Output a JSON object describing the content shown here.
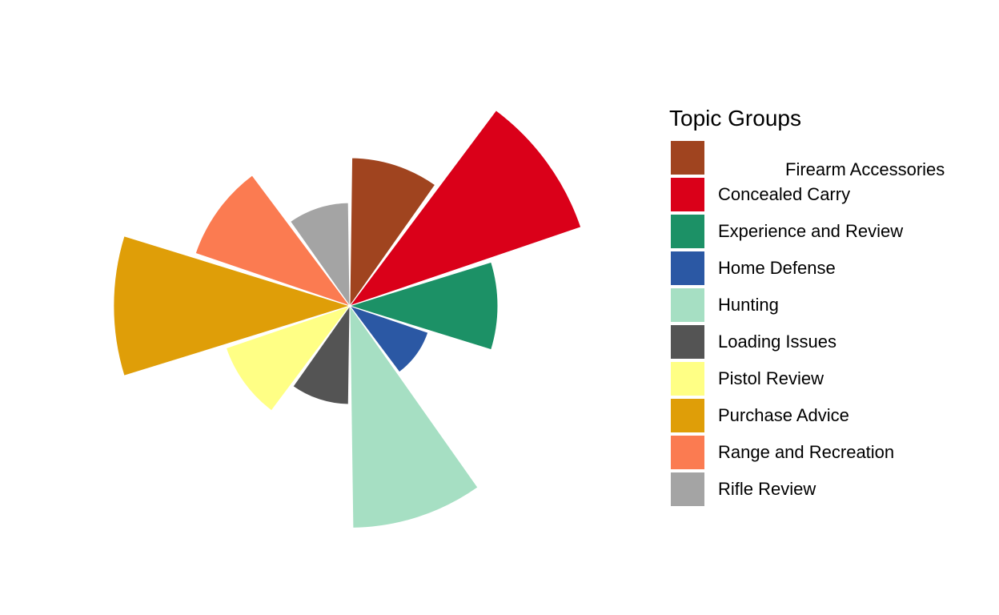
{
  "chart_data": {
    "type": "polar-bar",
    "title": "",
    "legend": {
      "title": "Topic Groups",
      "position": "right"
    },
    "grid": false,
    "series": [
      {
        "name": "Firearm Accessories",
        "value": 188,
        "color": "#A0441F"
      },
      {
        "name": "Concealed Carry",
        "value": 310,
        "color": "#DA0019"
      },
      {
        "name": "Experience and Review",
        "value": 188,
        "color": "#1C9166"
      },
      {
        "name": "Home Defense",
        "value": 105,
        "color": "#2B58A4"
      },
      {
        "name": "Hunting",
        "value": 282,
        "color": "#A6DFC3"
      },
      {
        "name": "Loading Issues",
        "value": 125,
        "color": "#545454"
      },
      {
        "name": "Pistol Review",
        "value": 166,
        "color": "#FFFF85"
      },
      {
        "name": "Purchase Advice",
        "value": 300,
        "color": "#DF9E08"
      },
      {
        "name": "Range and Recreation",
        "value": 207,
        "color": "#FB7B51"
      },
      {
        "name": "Rifle Review",
        "value": 131,
        "color": "#A4A4A4"
      }
    ]
  }
}
